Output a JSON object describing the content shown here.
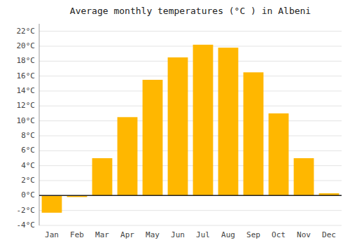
{
  "chart_data": {
    "type": "bar",
    "title": "Average monthly temperatures (°C ) in Albeni",
    "categories": [
      "Jan",
      "Feb",
      "Mar",
      "Apr",
      "May",
      "Jun",
      "Jul",
      "Aug",
      "Sep",
      "Oct",
      "Nov",
      "Dec"
    ],
    "values": [
      -2.3,
      -0.2,
      5.0,
      10.5,
      15.5,
      18.5,
      20.2,
      19.8,
      16.5,
      11.0,
      5.0,
      0.3
    ],
    "color": "#FFB700",
    "ylim": [
      -4,
      23
    ],
    "yticks": [
      {
        "value": -4,
        "label": "-4°C"
      },
      {
        "value": -2,
        "label": "-2°C"
      },
      {
        "value": 0,
        "label": "0°C"
      },
      {
        "value": 2,
        "label": "2°C"
      },
      {
        "value": 4,
        "label": "4°C"
      },
      {
        "value": 6,
        "label": "6°C"
      },
      {
        "value": 8,
        "label": "8°C"
      },
      {
        "value": 10,
        "label": "10°C"
      },
      {
        "value": 12,
        "label": "12°C"
      },
      {
        "value": 14,
        "label": "14°C"
      },
      {
        "value": 16,
        "label": "16°C"
      },
      {
        "value": 18,
        "label": "18°C"
      },
      {
        "value": 20,
        "label": "20°C"
      },
      {
        "value": 22,
        "label": "22°C"
      }
    ],
    "grid": true
  }
}
